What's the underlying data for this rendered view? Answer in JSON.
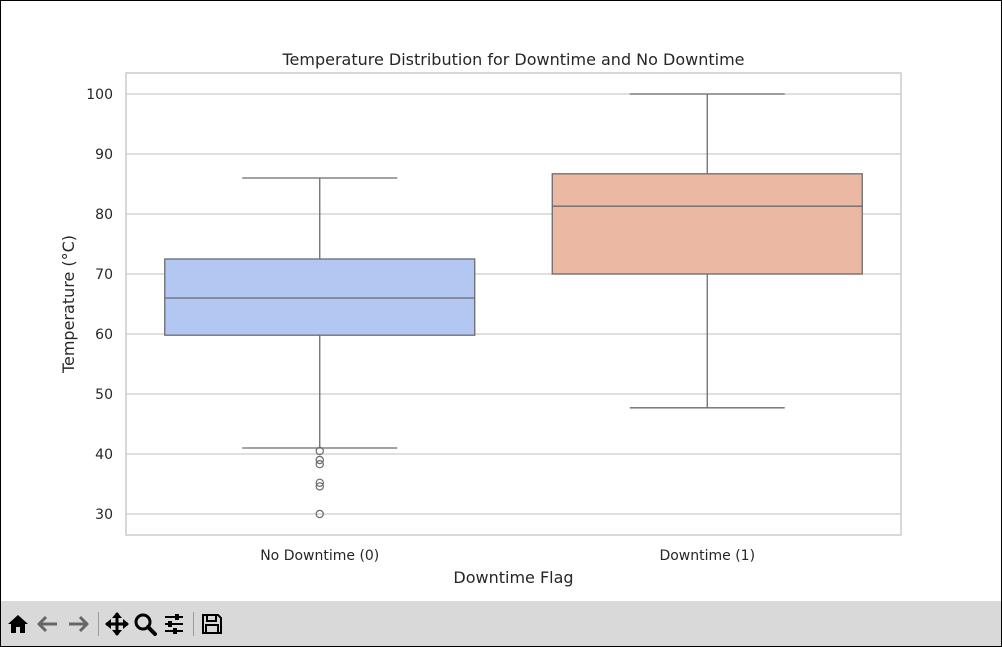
{
  "window": {
    "toolbar": {
      "tools": [
        {
          "name": "home-icon",
          "label": "Home"
        },
        {
          "name": "back-icon",
          "label": "Back"
        },
        {
          "name": "forward-icon",
          "label": "Forward"
        },
        {
          "name": "pan-icon",
          "label": "Pan"
        },
        {
          "name": "zoom-icon",
          "label": "Zoom"
        },
        {
          "name": "configure-subplots-icon",
          "label": "Configure subplots"
        },
        {
          "name": "save-icon",
          "label": "Save"
        }
      ]
    }
  },
  "chart_data": {
    "type": "box",
    "title": "Temperature Distribution for Downtime and No Downtime",
    "xlabel": "Downtime Flag",
    "ylabel": "Temperature (°C)",
    "categories": [
      "No Downtime (0)",
      "Downtime (1)"
    ],
    "ylim": [
      26.5,
      103.5
    ],
    "yticks": [
      30,
      40,
      50,
      60,
      70,
      80,
      90,
      100
    ],
    "grid": true,
    "boxes": [
      {
        "category": "No Downtime (0)",
        "whisker_low": 41,
        "q1": 59.8,
        "median": 66,
        "q3": 72.5,
        "whisker_high": 86,
        "outliers": [
          40.5,
          39,
          38.3,
          35.2,
          34.6,
          30
        ],
        "color": "#b3c7f3"
      },
      {
        "category": "Downtime (1)",
        "whisker_low": 47.7,
        "q1": 70,
        "median": 81.3,
        "q3": 86.7,
        "whisker_high": 100,
        "outliers": [],
        "color": "#ebb9a3"
      }
    ]
  }
}
